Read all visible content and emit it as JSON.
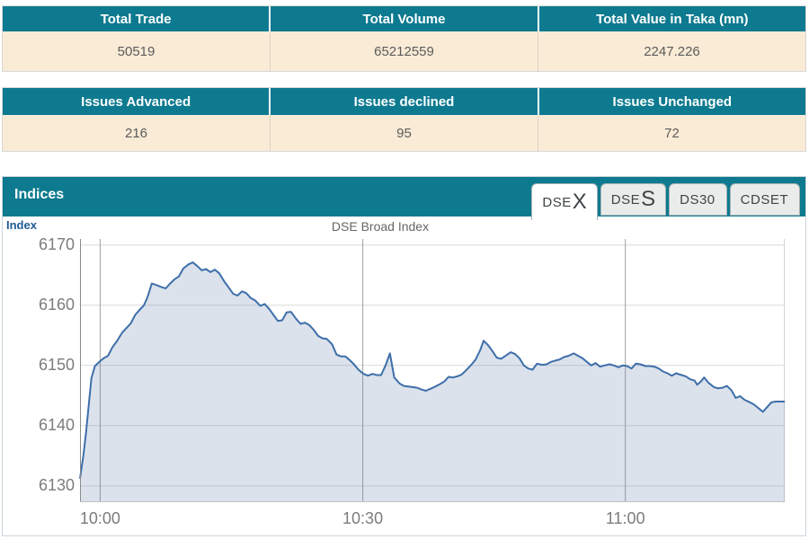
{
  "summary_table_1": {
    "headers": [
      "Total Trade",
      "Total Volume",
      "Total Value in Taka (mn)"
    ],
    "values": [
      "50519",
      "65212559",
      "2247.226"
    ]
  },
  "summary_table_2": {
    "headers": [
      "Issues Advanced",
      "Issues declined",
      "Issues Unchanged"
    ],
    "values": [
      "216",
      "95",
      "72"
    ]
  },
  "indices_panel": {
    "title": "Indices",
    "axis_name": "Index",
    "chart_title": "DSE Broad Index",
    "tabs": [
      {
        "text_small": "DSE",
        "text_large": "X",
        "active": true
      },
      {
        "text_small": "DSE",
        "text_large": "S",
        "active": false
      },
      {
        "text_small": "DS30",
        "text_large": "",
        "active": false
      },
      {
        "text_small": "CDSET",
        "text_large": "",
        "active": false
      }
    ]
  },
  "colors": {
    "teal_header": "#0d7a8f",
    "cream_row": "#faebd7",
    "line": "#3e6fa9",
    "fill": "rgba(90,125,170,0.22)",
    "h_grid": "#dadada",
    "v_grid": "#a0a0a0",
    "axis_left": "#8a8a8a",
    "axis_bottom": "#c0c0c0"
  },
  "chart_data": {
    "type": "area",
    "title": "DSE Broad Index",
    "ylabel": "Index",
    "x_unit": "minutes_after_10:00",
    "x_range": [
      -2.3,
      78.2
    ],
    "y_range": [
      6127.3,
      6171.0
    ],
    "x_ticks": [
      {
        "t": 0,
        "label": "10:00"
      },
      {
        "t": 30,
        "label": "10:30"
      },
      {
        "t": 60,
        "label": "11:00"
      }
    ],
    "y_ticks": [
      {
        "v": 6130,
        "label": "6130"
      },
      {
        "v": 6140,
        "label": "6140"
      },
      {
        "v": 6150,
        "label": "6150"
      },
      {
        "v": 6160,
        "label": "6160"
      },
      {
        "v": 6170,
        "label": "6170"
      }
    ],
    "grid": true,
    "legend": false,
    "points": [
      [
        -2.3,
        6131.2
      ],
      [
        -1.9,
        6135.2
      ],
      [
        -1.6,
        6139.0
      ],
      [
        -1.3,
        6143.4
      ],
      [
        -1.0,
        6147.9
      ],
      [
        -0.6,
        6149.9
      ],
      [
        -0.1,
        6150.6
      ],
      [
        0.4,
        6151.2
      ],
      [
        0.9,
        6151.6
      ],
      [
        1.4,
        6153.0
      ],
      [
        1.9,
        6154.0
      ],
      [
        2.5,
        6155.4
      ],
      [
        3.0,
        6156.2
      ],
      [
        3.5,
        6157.0
      ],
      [
        4.0,
        6158.4
      ],
      [
        4.5,
        6159.2
      ],
      [
        5.0,
        6160.0
      ],
      [
        5.4,
        6161.3
      ],
      [
        5.9,
        6163.6
      ],
      [
        6.5,
        6163.3
      ],
      [
        7.0,
        6163.0
      ],
      [
        7.5,
        6162.8
      ],
      [
        8.0,
        6163.6
      ],
      [
        8.5,
        6164.3
      ],
      [
        9.0,
        6164.8
      ],
      [
        9.5,
        6166.1
      ],
      [
        10.1,
        6166.8
      ],
      [
        10.6,
        6167.1
      ],
      [
        11.1,
        6166.5
      ],
      [
        11.6,
        6165.8
      ],
      [
        12.1,
        6166.0
      ],
      [
        12.6,
        6165.5
      ],
      [
        13.1,
        6165.9
      ],
      [
        13.6,
        6165.3
      ],
      [
        14.2,
        6163.9
      ],
      [
        14.7,
        6162.9
      ],
      [
        15.2,
        6161.9
      ],
      [
        15.7,
        6161.6
      ],
      [
        16.2,
        6162.3
      ],
      [
        16.7,
        6162.0
      ],
      [
        17.2,
        6161.2
      ],
      [
        17.7,
        6160.8
      ],
      [
        18.3,
        6159.9
      ],
      [
        18.8,
        6160.2
      ],
      [
        19.3,
        6159.4
      ],
      [
        19.8,
        6158.4
      ],
      [
        20.3,
        6157.4
      ],
      [
        20.8,
        6157.5
      ],
      [
        21.3,
        6158.8
      ],
      [
        21.8,
        6158.9
      ],
      [
        22.4,
        6157.7
      ],
      [
        22.9,
        6156.9
      ],
      [
        23.4,
        6157.1
      ],
      [
        23.9,
        6156.7
      ],
      [
        24.4,
        6155.9
      ],
      [
        24.9,
        6154.9
      ],
      [
        25.4,
        6154.5
      ],
      [
        25.9,
        6154.4
      ],
      [
        26.5,
        6153.5
      ],
      [
        27.0,
        6151.8
      ],
      [
        27.5,
        6151.5
      ],
      [
        28.0,
        6151.5
      ],
      [
        28.5,
        6150.9
      ],
      [
        29.0,
        6150.2
      ],
      [
        29.5,
        6149.3
      ],
      [
        30.1,
        6148.6
      ],
      [
        30.6,
        6148.3
      ],
      [
        31.1,
        6148.6
      ],
      [
        31.6,
        6148.4
      ],
      [
        32.1,
        6148.4
      ],
      [
        32.6,
        6150.0
      ],
      [
        33.1,
        6152.0
      ],
      [
        33.6,
        6148.0
      ],
      [
        34.2,
        6147.0
      ],
      [
        34.7,
        6146.6
      ],
      [
        35.2,
        6146.5
      ],
      [
        35.7,
        6146.4
      ],
      [
        36.2,
        6146.3
      ],
      [
        36.7,
        6146.0
      ],
      [
        37.2,
        6145.8
      ],
      [
        37.7,
        6146.1
      ],
      [
        38.3,
        6146.5
      ],
      [
        38.8,
        6146.9
      ],
      [
        39.3,
        6147.3
      ],
      [
        39.8,
        6148.1
      ],
      [
        40.3,
        6148.0
      ],
      [
        40.8,
        6148.2
      ],
      [
        41.3,
        6148.5
      ],
      [
        41.8,
        6149.2
      ],
      [
        42.4,
        6150.1
      ],
      [
        42.9,
        6151.0
      ],
      [
        43.4,
        6152.5
      ],
      [
        43.8,
        6154.1
      ],
      [
        44.3,
        6153.4
      ],
      [
        44.8,
        6152.4
      ],
      [
        45.3,
        6151.3
      ],
      [
        45.8,
        6151.1
      ],
      [
        46.4,
        6151.7
      ],
      [
        46.9,
        6152.2
      ],
      [
        47.4,
        6151.9
      ],
      [
        47.9,
        6151.2
      ],
      [
        48.4,
        6150.0
      ],
      [
        48.9,
        6149.5
      ],
      [
        49.4,
        6149.3
      ],
      [
        49.9,
        6150.3
      ],
      [
        50.5,
        6150.1
      ],
      [
        51.0,
        6150.2
      ],
      [
        51.5,
        6150.6
      ],
      [
        52.0,
        6150.8
      ],
      [
        52.5,
        6151.0
      ],
      [
        53.0,
        6151.4
      ],
      [
        53.5,
        6151.6
      ],
      [
        54.1,
        6152.0
      ],
      [
        54.6,
        6151.6
      ],
      [
        55.1,
        6151.2
      ],
      [
        55.6,
        6150.6
      ],
      [
        56.1,
        6150.0
      ],
      [
        56.6,
        6150.4
      ],
      [
        57.1,
        6149.8
      ],
      [
        57.6,
        6150.0
      ],
      [
        58.2,
        6150.2
      ],
      [
        58.7,
        6150.0
      ],
      [
        59.2,
        6149.7
      ],
      [
        59.7,
        6150.0
      ],
      [
        60.2,
        6149.9
      ],
      [
        60.7,
        6149.5
      ],
      [
        61.2,
        6150.3
      ],
      [
        61.7,
        6150.2
      ],
      [
        62.3,
        6149.9
      ],
      [
        62.8,
        6149.9
      ],
      [
        63.3,
        6149.8
      ],
      [
        63.8,
        6149.5
      ],
      [
        64.3,
        6149.0
      ],
      [
        64.8,
        6148.7
      ],
      [
        65.3,
        6148.3
      ],
      [
        65.8,
        6148.7
      ],
      [
        66.4,
        6148.4
      ],
      [
        66.9,
        6148.2
      ],
      [
        67.4,
        6147.7
      ],
      [
        67.9,
        6147.5
      ],
      [
        68.2,
        6146.8
      ],
      [
        68.6,
        6147.3
      ],
      [
        69.0,
        6148.0
      ],
      [
        69.5,
        6147.1
      ],
      [
        70.1,
        6146.4
      ],
      [
        70.6,
        6146.2
      ],
      [
        71.1,
        6146.3
      ],
      [
        71.6,
        6146.6
      ],
      [
        72.1,
        6145.9
      ],
      [
        72.6,
        6144.6
      ],
      [
        73.1,
        6144.9
      ],
      [
        73.6,
        6144.3
      ],
      [
        74.2,
        6143.9
      ],
      [
        74.7,
        6143.5
      ],
      [
        75.2,
        6142.9
      ],
      [
        75.7,
        6142.3
      ],
      [
        76.2,
        6143.1
      ],
      [
        76.7,
        6143.9
      ],
      [
        77.2,
        6144.0
      ],
      [
        77.7,
        6144.0
      ],
      [
        78.2,
        6144.0
      ]
    ]
  }
}
